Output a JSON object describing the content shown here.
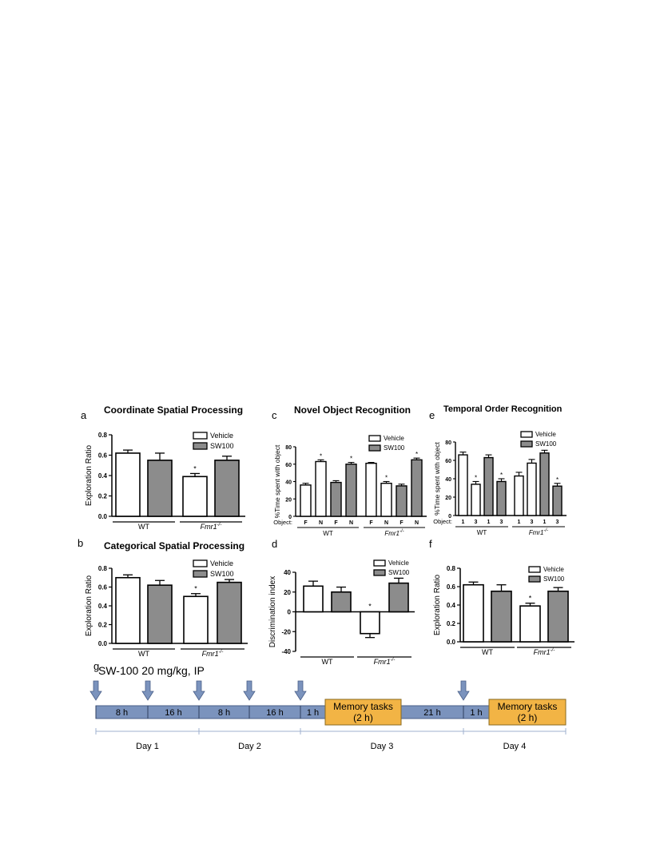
{
  "panels": {
    "a": {
      "letter": "a",
      "title": "Coordinate Spatial Processing"
    },
    "b": {
      "letter": "b",
      "title": "Categorical Spatial Processing"
    },
    "c": {
      "letter": "c",
      "title": "Novel Object Recognition"
    },
    "d": {
      "letter": "d",
      "title": ""
    },
    "e": {
      "letter": "e",
      "title": "Temporal Order Recognition"
    },
    "f": {
      "letter": "f",
      "title": ""
    },
    "g": {
      "letter": "g",
      "title": "SW-100 20 mg/kg, IP"
    }
  },
  "legend": {
    "vehicle": "Vehicle",
    "sw100": "SW100"
  },
  "colors": {
    "vehicle": "#ffffff",
    "sw100": "#8c8c8c",
    "timeline_bar": "#7b93bd",
    "memory_box": "#f2b445"
  },
  "chart_data": [
    {
      "id": "a",
      "type": "bar",
      "title": "Coordinate Spatial Processing",
      "ylabel": "Exploration Ratio",
      "ylim": [
        0,
        0.8
      ],
      "yticks": [
        "0.0",
        "0.2",
        "0.4",
        "0.6",
        "0.8"
      ],
      "groups": [
        "WT",
        "Fmr1-/-"
      ],
      "series": [
        {
          "name": "Vehicle",
          "values": [
            0.62,
            0.39
          ],
          "errors": [
            0.03,
            0.03
          ],
          "sig": [
            "",
            "*"
          ]
        },
        {
          "name": "SW100",
          "values": [
            0.55,
            0.55
          ],
          "errors": [
            0.07,
            0.04
          ],
          "sig": [
            "",
            ""
          ]
        }
      ]
    },
    {
      "id": "b",
      "type": "bar",
      "title": "Categorical Spatial Processing",
      "ylabel": "Exploration Ratio",
      "ylim": [
        0,
        0.8
      ],
      "yticks": [
        "0.0",
        "0.2",
        "0.4",
        "0.6",
        "0.8"
      ],
      "groups": [
        "WT",
        "Fmr1-/-"
      ],
      "series": [
        {
          "name": "Vehicle",
          "values": [
            0.7,
            0.5
          ],
          "errors": [
            0.03,
            0.03
          ],
          "sig": [
            "",
            "*"
          ]
        },
        {
          "name": "SW100",
          "values": [
            0.62,
            0.65
          ],
          "errors": [
            0.05,
            0.03
          ],
          "sig": [
            "",
            ""
          ]
        }
      ]
    },
    {
      "id": "c",
      "type": "bar",
      "title": "Novel Object Recognition",
      "ylabel": "%Time spent with object",
      "ylim": [
        0,
        80
      ],
      "yticks": [
        "0",
        "20",
        "40",
        "60",
        "80"
      ],
      "xprefix": "Object:",
      "categories": [
        "F",
        "N",
        "F",
        "N",
        "F",
        "N",
        "F",
        "N"
      ],
      "groups": [
        "WT",
        "Fmr1-/-"
      ],
      "values": [
        36,
        63,
        39,
        60,
        61,
        38,
        35,
        65
      ],
      "errors": [
        2,
        2,
        2,
        2,
        1,
        2,
        2,
        2
      ],
      "treatment": [
        "Vehicle",
        "Vehicle",
        "SW100",
        "SW100",
        "Vehicle",
        "Vehicle",
        "SW100",
        "SW100"
      ],
      "sig": [
        "",
        "*",
        "",
        "*",
        "",
        "*",
        "",
        "*"
      ]
    },
    {
      "id": "d",
      "type": "bar",
      "title": "",
      "ylabel": "Discrimination index",
      "ylim": [
        -40,
        40
      ],
      "yticks": [
        "-40",
        "-20",
        "0",
        "20",
        "40"
      ],
      "groups": [
        "WT",
        "Fmr1-/-"
      ],
      "series": [
        {
          "name": "Vehicle",
          "values": [
            26,
            -22
          ],
          "errors": [
            5,
            4
          ],
          "sig": [
            "",
            "*"
          ]
        },
        {
          "name": "SW100",
          "values": [
            20,
            29
          ],
          "errors": [
            5,
            5
          ],
          "sig": [
            "",
            ""
          ]
        }
      ]
    },
    {
      "id": "e",
      "type": "bar",
      "title": "Temporal Order Recognition",
      "ylabel": "%Time spent with object",
      "ylim": [
        0,
        80
      ],
      "yticks": [
        "0",
        "20",
        "40",
        "60",
        "80"
      ],
      "xprefix": "Object:",
      "categories": [
        "1",
        "3",
        "1",
        "3",
        "1",
        "3",
        "1",
        "3"
      ],
      "groups": [
        "WT",
        "Fmr1-/-"
      ],
      "values": [
        66,
        34,
        63,
        37,
        43,
        57,
        68,
        32
      ],
      "errors": [
        3,
        3,
        3,
        3,
        4,
        4,
        3,
        3
      ],
      "treatment": [
        "Vehicle",
        "Vehicle",
        "SW100",
        "SW100",
        "Vehicle",
        "Vehicle",
        "SW100",
        "SW100"
      ],
      "sig": [
        "",
        "*",
        "",
        "*",
        "",
        "",
        "",
        "*"
      ]
    },
    {
      "id": "f",
      "type": "bar",
      "title": "",
      "ylabel": "Exploration Ratio",
      "ylim": [
        0,
        0.8
      ],
      "yticks": [
        "0.0",
        "0.2",
        "0.4",
        "0.6",
        "0.8"
      ],
      "groups": [
        "WT",
        "Fmr1-/-"
      ],
      "series": [
        {
          "name": "Vehicle",
          "values": [
            0.62,
            0.39
          ],
          "errors": [
            0.03,
            0.03
          ],
          "sig": [
            "",
            "*"
          ]
        },
        {
          "name": "SW100",
          "values": [
            0.55,
            0.55
          ],
          "errors": [
            0.07,
            0.04
          ],
          "sig": [
            "",
            ""
          ]
        }
      ]
    }
  ],
  "timeline": {
    "segments": [
      "8 h",
      "16 h",
      "8 h",
      "16 h",
      "1 h",
      "21 h",
      "1 h"
    ],
    "memory": [
      "Memory tasks",
      "(2 h)"
    ],
    "days": [
      "Day 1",
      "Day 2",
      "Day 3",
      "Day 4"
    ]
  }
}
